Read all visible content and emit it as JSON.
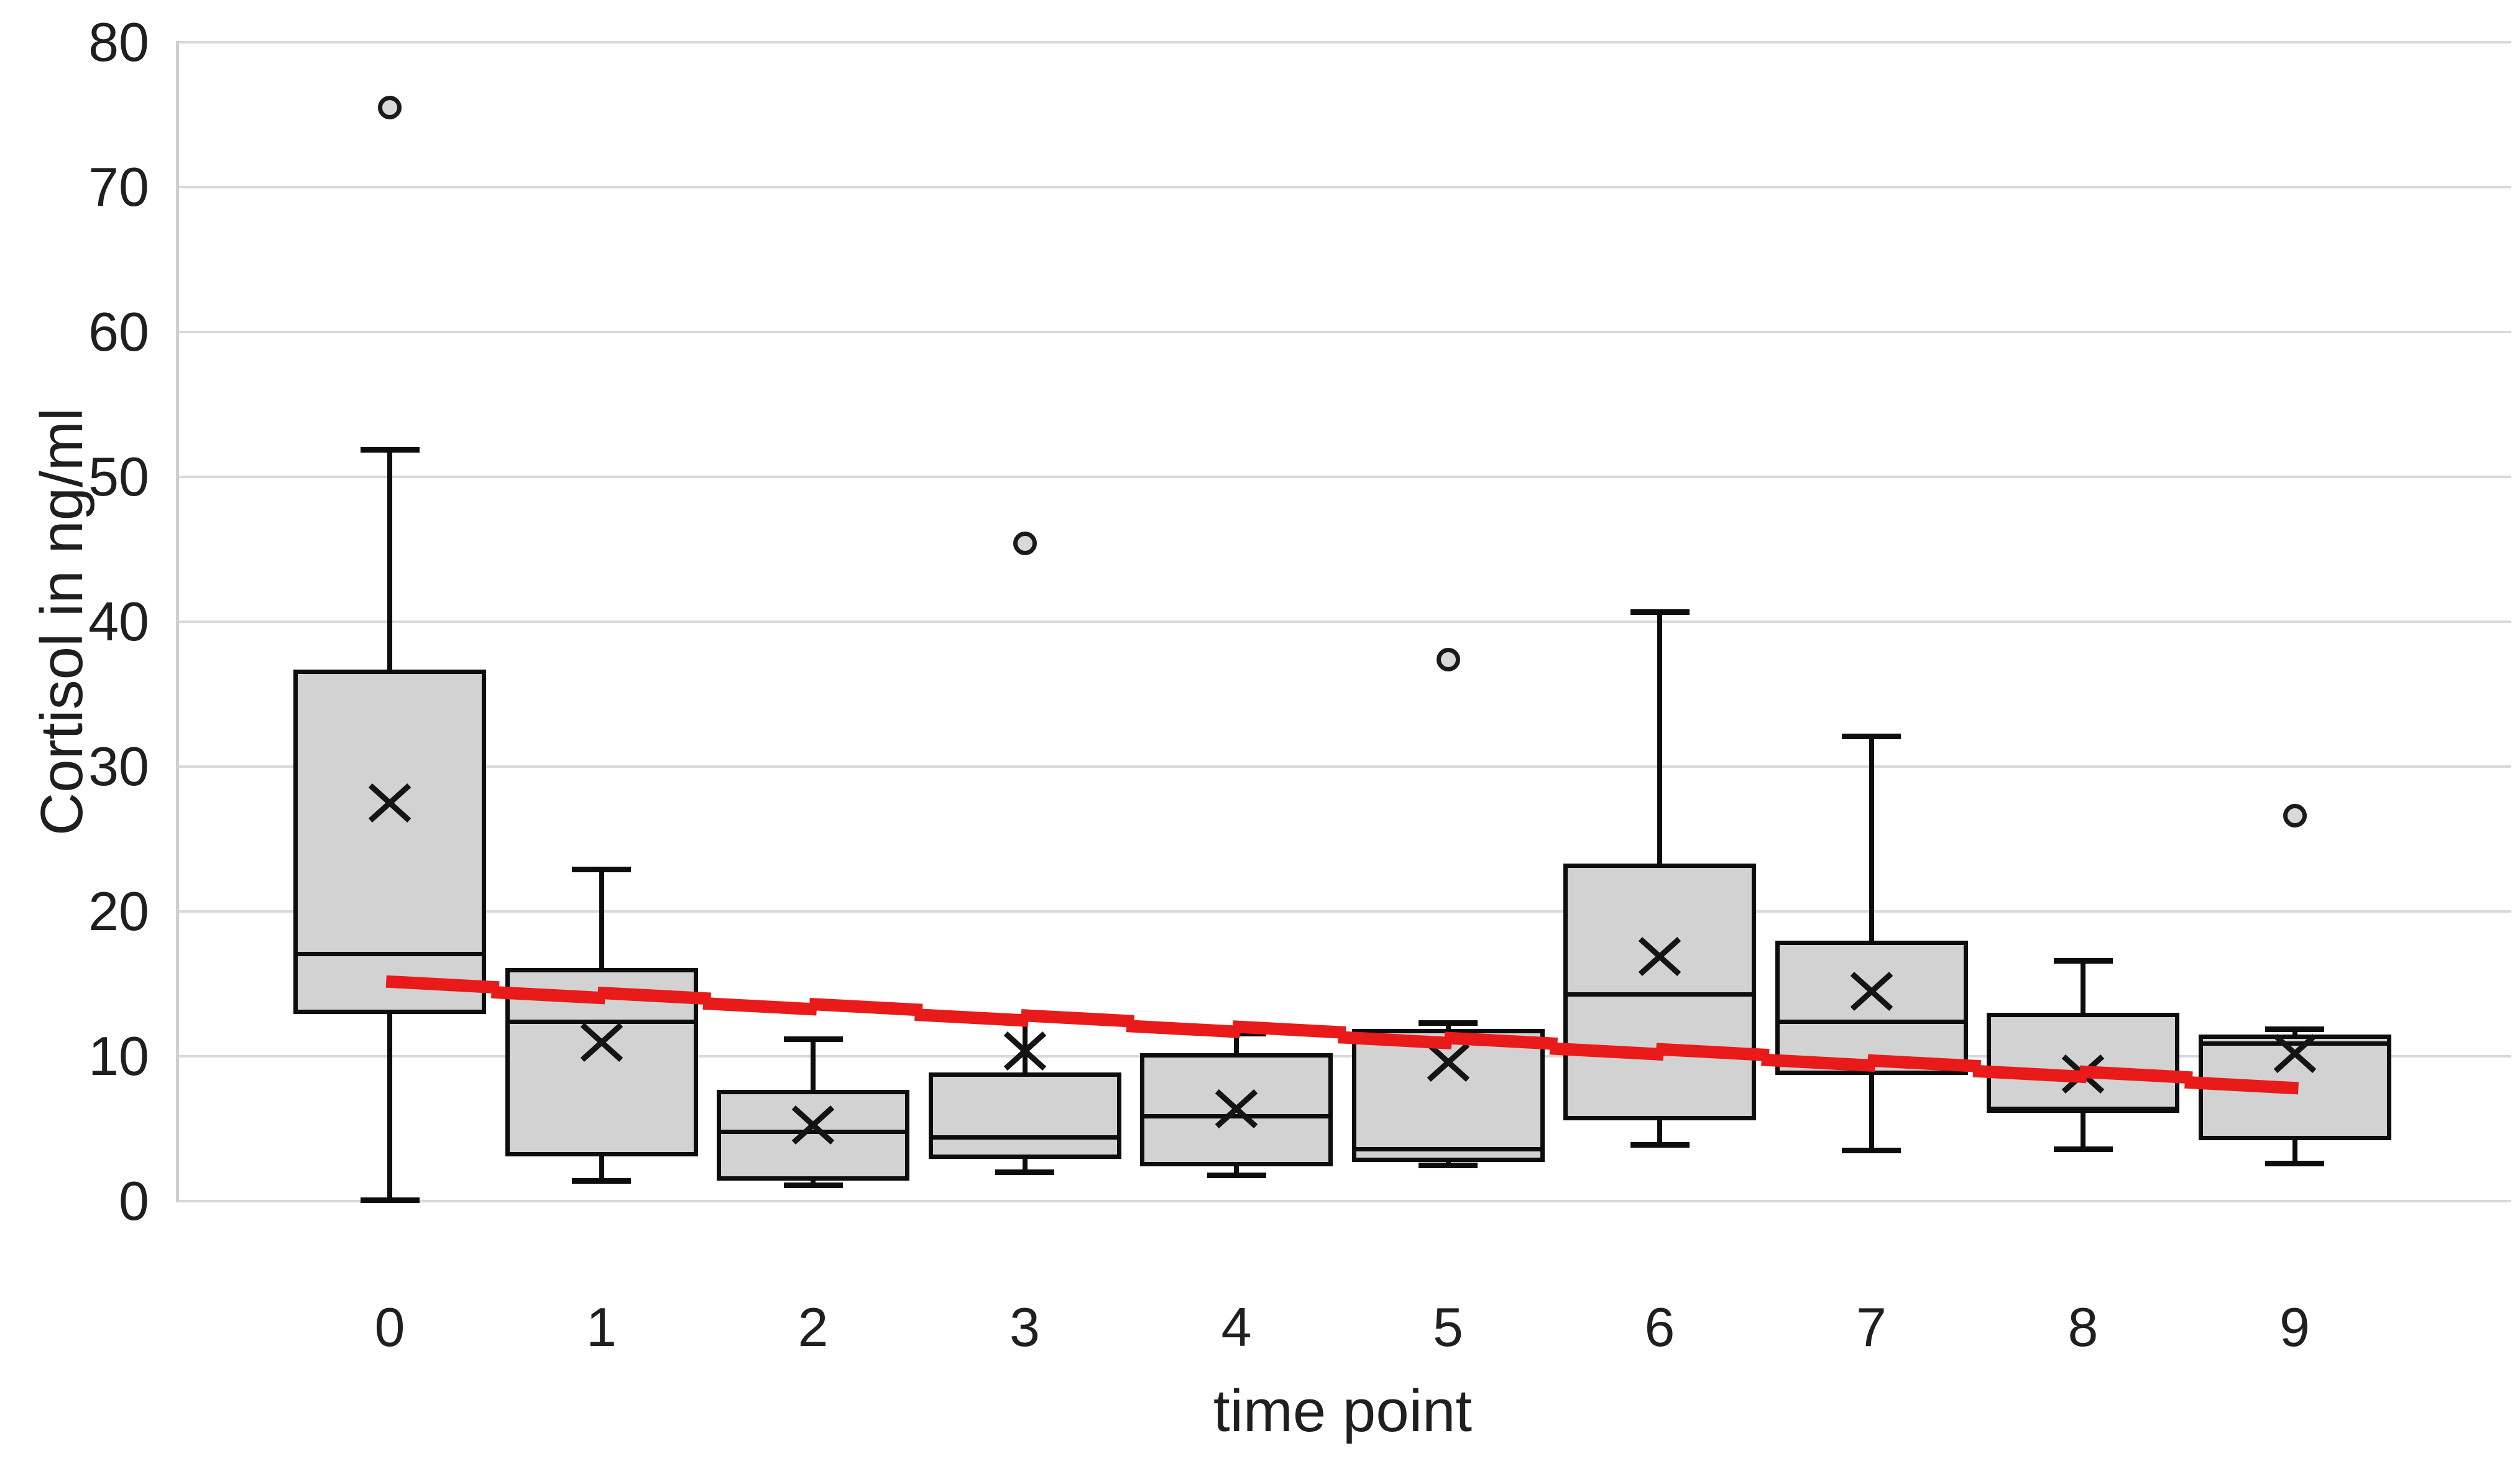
{
  "chart_data": {
    "type": "box",
    "title": "",
    "xlabel": "time point",
    "ylabel": "Cortisol in ng/ml",
    "ylim": [
      0,
      80
    ],
    "ytick_step": 10,
    "ytick_labels": [
      "0",
      "10",
      "20",
      "30",
      "40",
      "50",
      "60",
      "70",
      "80"
    ],
    "grid": "horizontal-only",
    "legend": "none",
    "categories": [
      "0",
      "1",
      "2",
      "3",
      "4",
      "5",
      "6",
      "7",
      "8",
      "9"
    ],
    "series": [
      {
        "t": 0,
        "min": 0.1,
        "q1": 12.9,
        "median": 17.1,
        "q3": 36.7,
        "max": 51.9,
        "mean": 27.5,
        "outliers": [
          75.5
        ]
      },
      {
        "t": 1,
        "min": 1.4,
        "q1": 3.1,
        "median": 12.4,
        "q3": 16.1,
        "max": 22.9,
        "mean": 11.0,
        "outliers": []
      },
      {
        "t": 2,
        "min": 1.1,
        "q1": 1.4,
        "median": 4.8,
        "q3": 7.7,
        "max": 11.2,
        "mean": 5.3,
        "outliers": []
      },
      {
        "t": 3,
        "min": 2.0,
        "q1": 2.9,
        "median": 4.4,
        "q3": 8.9,
        "max": 12.6,
        "mean": 10.4,
        "outliers": [
          45.4
        ]
      },
      {
        "t": 4,
        "min": 1.8,
        "q1": 2.4,
        "median": 5.9,
        "q3": 10.2,
        "max": 11.6,
        "mean": 6.4,
        "outliers": []
      },
      {
        "t": 5,
        "min": 2.5,
        "q1": 2.7,
        "median": 3.6,
        "q3": 11.9,
        "max": 12.3,
        "mean": 9.6,
        "outliers": [
          37.4
        ]
      },
      {
        "t": 6,
        "min": 3.9,
        "q1": 5.6,
        "median": 14.3,
        "q3": 23.3,
        "max": 40.7,
        "mean": 16.9,
        "outliers": []
      },
      {
        "t": 7,
        "min": 3.5,
        "q1": 8.7,
        "median": 12.4,
        "q3": 18.0,
        "max": 32.1,
        "mean": 14.5,
        "outliers": []
      },
      {
        "t": 8,
        "min": 3.6,
        "q1": 6.1,
        "median": 6.4,
        "q3": 13.0,
        "max": 16.6,
        "mean": 8.8,
        "outliers": []
      },
      {
        "t": 9,
        "min": 2.6,
        "q1": 4.2,
        "median": 10.9,
        "q3": 11.5,
        "max": 11.9,
        "mean": 10.2,
        "outliers": [
          26.6
        ]
      }
    ],
    "trendline": {
      "x_start": 0,
      "y_start": 15.0,
      "x_end": 9,
      "y_end": 8.0
    },
    "colors": {
      "box_fill": "#d2d2d2",
      "box_stroke": "#0d0d0d",
      "gridline": "#d9d9d9",
      "trend_red": "#e81a1a",
      "text": "#1f1f1f",
      "background": "#ffffff"
    }
  }
}
